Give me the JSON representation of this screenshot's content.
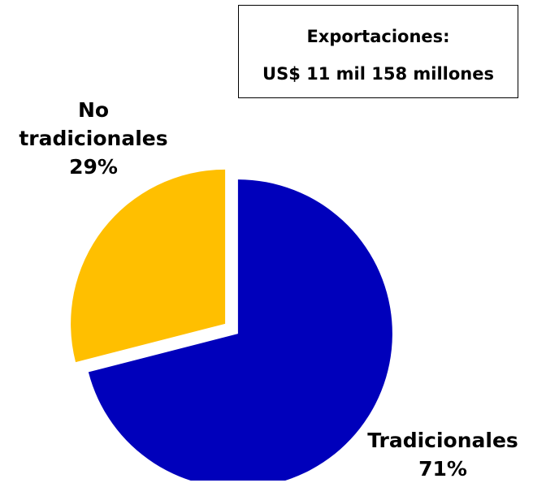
{
  "info_box": {
    "title": "Exportaciones:",
    "value": "US$ 11 mil 158 millones"
  },
  "chart_data": {
    "type": "pie",
    "title": "",
    "slices": [
      {
        "name_lines": [
          "Tradicionales"
        ],
        "percent_label": "71%",
        "value": 71,
        "color": "#0000BB"
      },
      {
        "name_lines": [
          "No",
          "tradicionales"
        ],
        "percent_label": "29%",
        "value": 29,
        "color": "#FFBF00"
      }
    ],
    "exploded": true,
    "start_angle": "12 o'clock",
    "direction": "clockwise"
  }
}
